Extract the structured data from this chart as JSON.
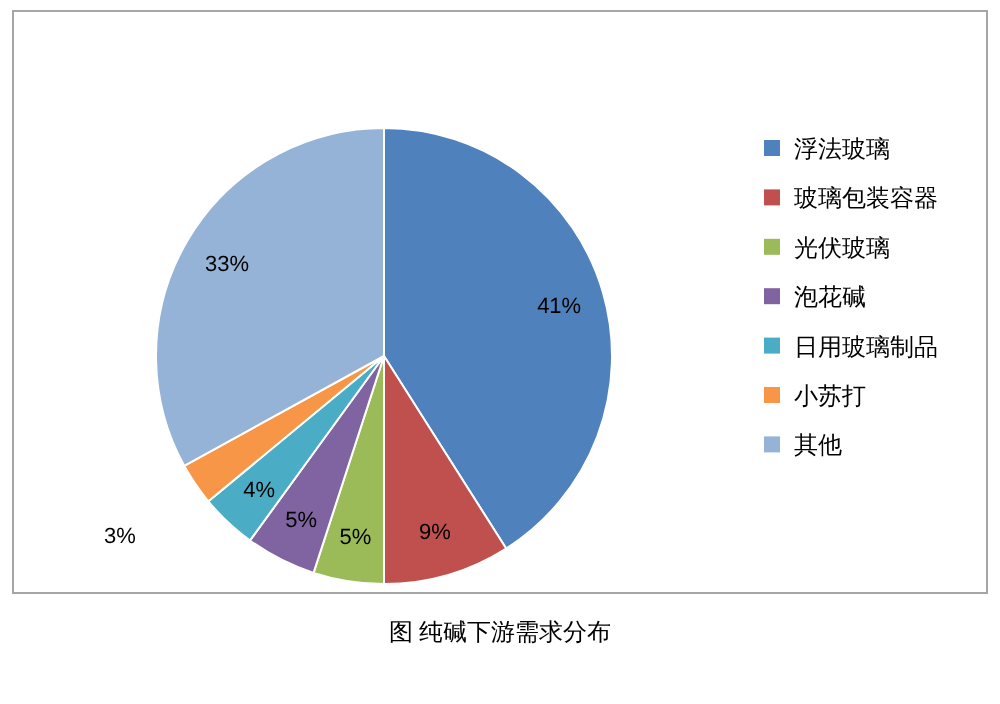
{
  "chart_data": {
    "type": "pie",
    "title": "图 纯碱下游需求分布",
    "categories": [
      "浮法玻璃",
      "玻璃包装容器",
      "光伏玻璃",
      "泡花碱",
      "日用玻璃制品",
      "小苏打",
      "其他"
    ],
    "values": [
      41,
      9,
      5,
      5,
      4,
      3,
      33
    ],
    "colors": [
      "#4f81bd",
      "#c0504d",
      "#9bbb59",
      "#8064a2",
      "#4bacc6",
      "#f79646",
      "#95b3d7"
    ],
    "value_labels": [
      "41%",
      "9%",
      "5%",
      "5%",
      "4%",
      "3%",
      "33%"
    ],
    "legend": "right"
  }
}
